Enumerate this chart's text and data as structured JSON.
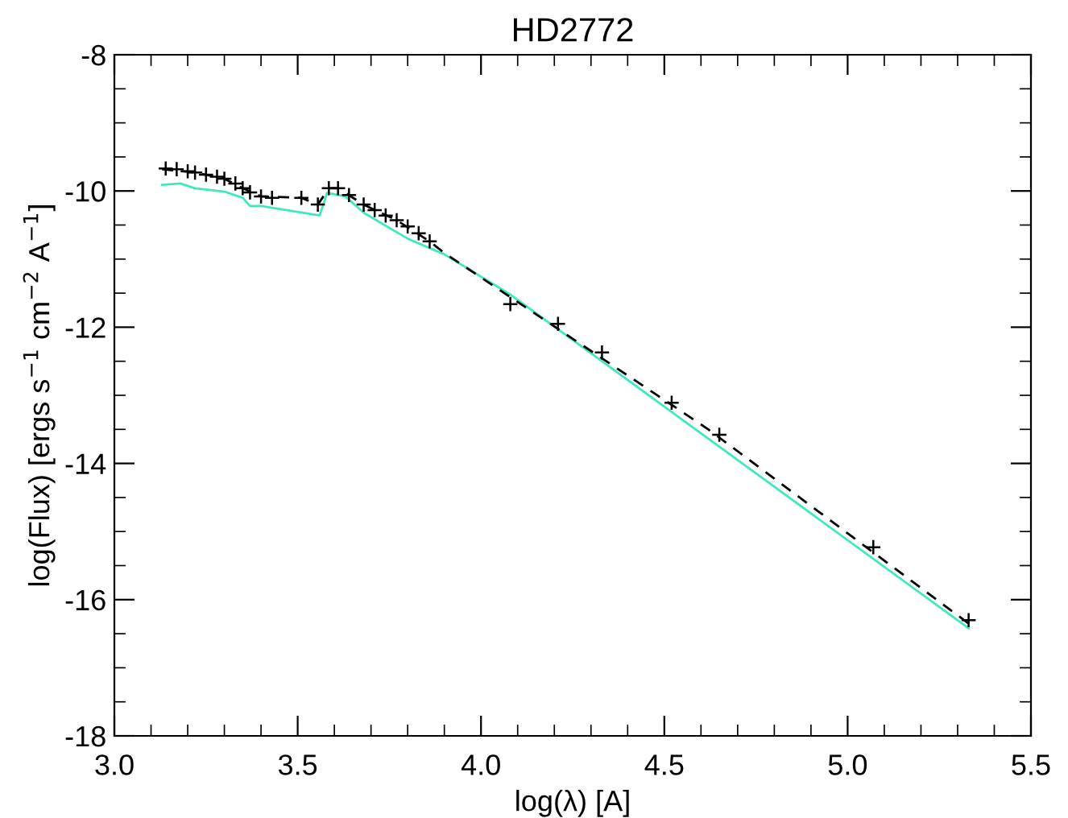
{
  "chart_data": {
    "type": "scatter",
    "title": "HD2772",
    "xlabel": "log(λ) [A]",
    "ylabel": "log(Flux) [ergs s$^{−1}$ cm$^{−2}$ A$^{−1}$]",
    "xlim": [
      3.0,
      5.5
    ],
    "xticks": [
      {
        "value": 3.0,
        "label": "3.0"
      },
      {
        "value": 3.5,
        "label": "3.5"
      },
      {
        "value": 4.0,
        "label": "4.0"
      },
      {
        "value": 4.5,
        "label": "4.5"
      },
      {
        "value": 5.0,
        "label": "5.0"
      },
      {
        "value": 5.5,
        "label": "5.5"
      }
    ],
    "ylim": [
      -18,
      -8
    ],
    "yticks": [
      -18,
      -16,
      -14,
      -12,
      -10,
      -8
    ],
    "grid": false,
    "series": [
      {
        "type": "line",
        "color": "#40e8c0",
        "line_style": "solid",
        "x": [
          3.13,
          3.18,
          3.22,
          3.3,
          3.35,
          3.37,
          3.4,
          3.56,
          3.58,
          3.63,
          3.68,
          3.8,
          3.9,
          4.08,
          5.33
        ],
        "values": [
          -9.91,
          -9.89,
          -9.96,
          -10.01,
          -10.1,
          -10.22,
          -10.22,
          -10.36,
          -10.03,
          -10.08,
          -10.32,
          -10.7,
          -10.93,
          -11.52,
          -16.42
        ]
      },
      {
        "type": "line",
        "color": "#000000",
        "line_style": "dashed",
        "x": [
          3.13,
          3.22,
          3.3,
          3.35,
          3.4,
          3.51,
          3.555,
          3.585,
          3.61,
          3.68,
          3.77,
          3.86,
          3.9,
          4.62,
          5.33
        ],
        "values": [
          -9.68,
          -9.73,
          -9.82,
          -9.96,
          -10.08,
          -10.1,
          -10.2,
          -9.96,
          -9.96,
          -10.2,
          -10.43,
          -10.74,
          -10.91,
          -13.5,
          -16.35
        ]
      },
      {
        "color": "#000000",
        "marker": "cross",
        "x": [
          3.14,
          3.17,
          3.2,
          3.22,
          3.25,
          3.28,
          3.3,
          3.33,
          3.35,
          3.37,
          3.4,
          3.43,
          3.51,
          3.555,
          3.585,
          3.61,
          3.64,
          3.68,
          3.71,
          3.74,
          3.77,
          3.8,
          3.83,
          3.86,
          4.08,
          4.21,
          4.33,
          4.52,
          4.65,
          5.07,
          5.33
        ],
        "values": [
          -9.67,
          -9.68,
          -9.71,
          -9.73,
          -9.76,
          -9.79,
          -9.82,
          -9.89,
          -9.96,
          -10.02,
          -10.08,
          -10.1,
          -10.1,
          -10.2,
          -9.96,
          -9.96,
          -10.06,
          -10.2,
          -10.28,
          -10.36,
          -10.43,
          -10.52,
          -10.62,
          -10.74,
          -11.66,
          -11.95,
          -12.37,
          -13.11,
          -13.58,
          -15.23,
          -16.3
        ]
      }
    ]
  }
}
